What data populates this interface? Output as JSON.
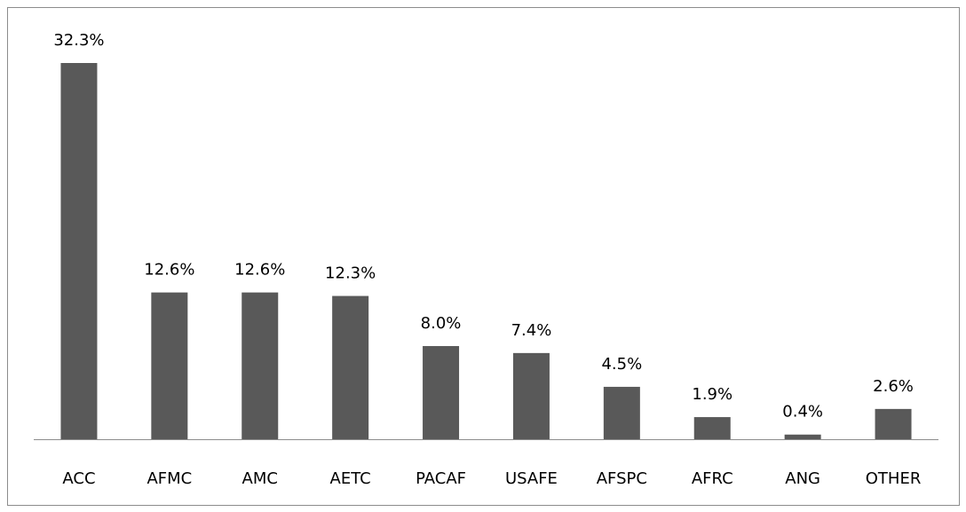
{
  "chart_data": {
    "type": "bar",
    "categories": [
      "ACC",
      "AFMC",
      "AMC",
      "AETC",
      "PACAF",
      "USAFE",
      "AFSPC",
      "AFRC",
      "ANG",
      "OTHER"
    ],
    "values": [
      32.3,
      12.6,
      12.6,
      12.3,
      8.0,
      7.4,
      4.5,
      1.9,
      0.4,
      2.6
    ],
    "value_labels": [
      "32.3%",
      "12.6%",
      "12.6%",
      "12.3%",
      "8.0%",
      "7.4%",
      "4.5%",
      "1.9%",
      "0.4%",
      "2.6%"
    ],
    "color": "#595959"
  }
}
